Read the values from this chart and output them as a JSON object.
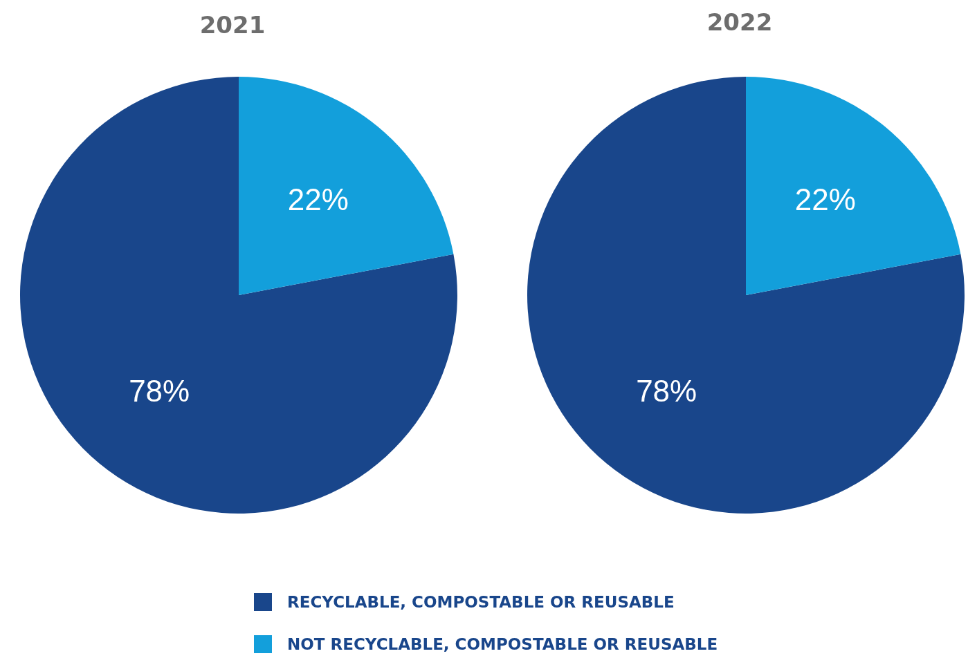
{
  "chart_data": [
    {
      "type": "pie",
      "title": "2021",
      "categories": [
        "RECYCLABLE, COMPOSTABLE OR REUSABLE",
        "NOT RECYCLABLE, COMPOSTABLE OR REUSABLE"
      ],
      "values": [
        78,
        22
      ],
      "value_labels": [
        "78%",
        "22%"
      ],
      "colors": [
        "#19468b",
        "#139fdb"
      ],
      "legend": "bottom"
    },
    {
      "type": "pie",
      "title": "2022",
      "categories": [
        null,
        null
      ],
      "values": [
        78,
        22
      ],
      "value_labels": [
        "78%",
        "22%"
      ],
      "colors": [
        "#19468b",
        "#139fdb"
      ]
    }
  ]
}
